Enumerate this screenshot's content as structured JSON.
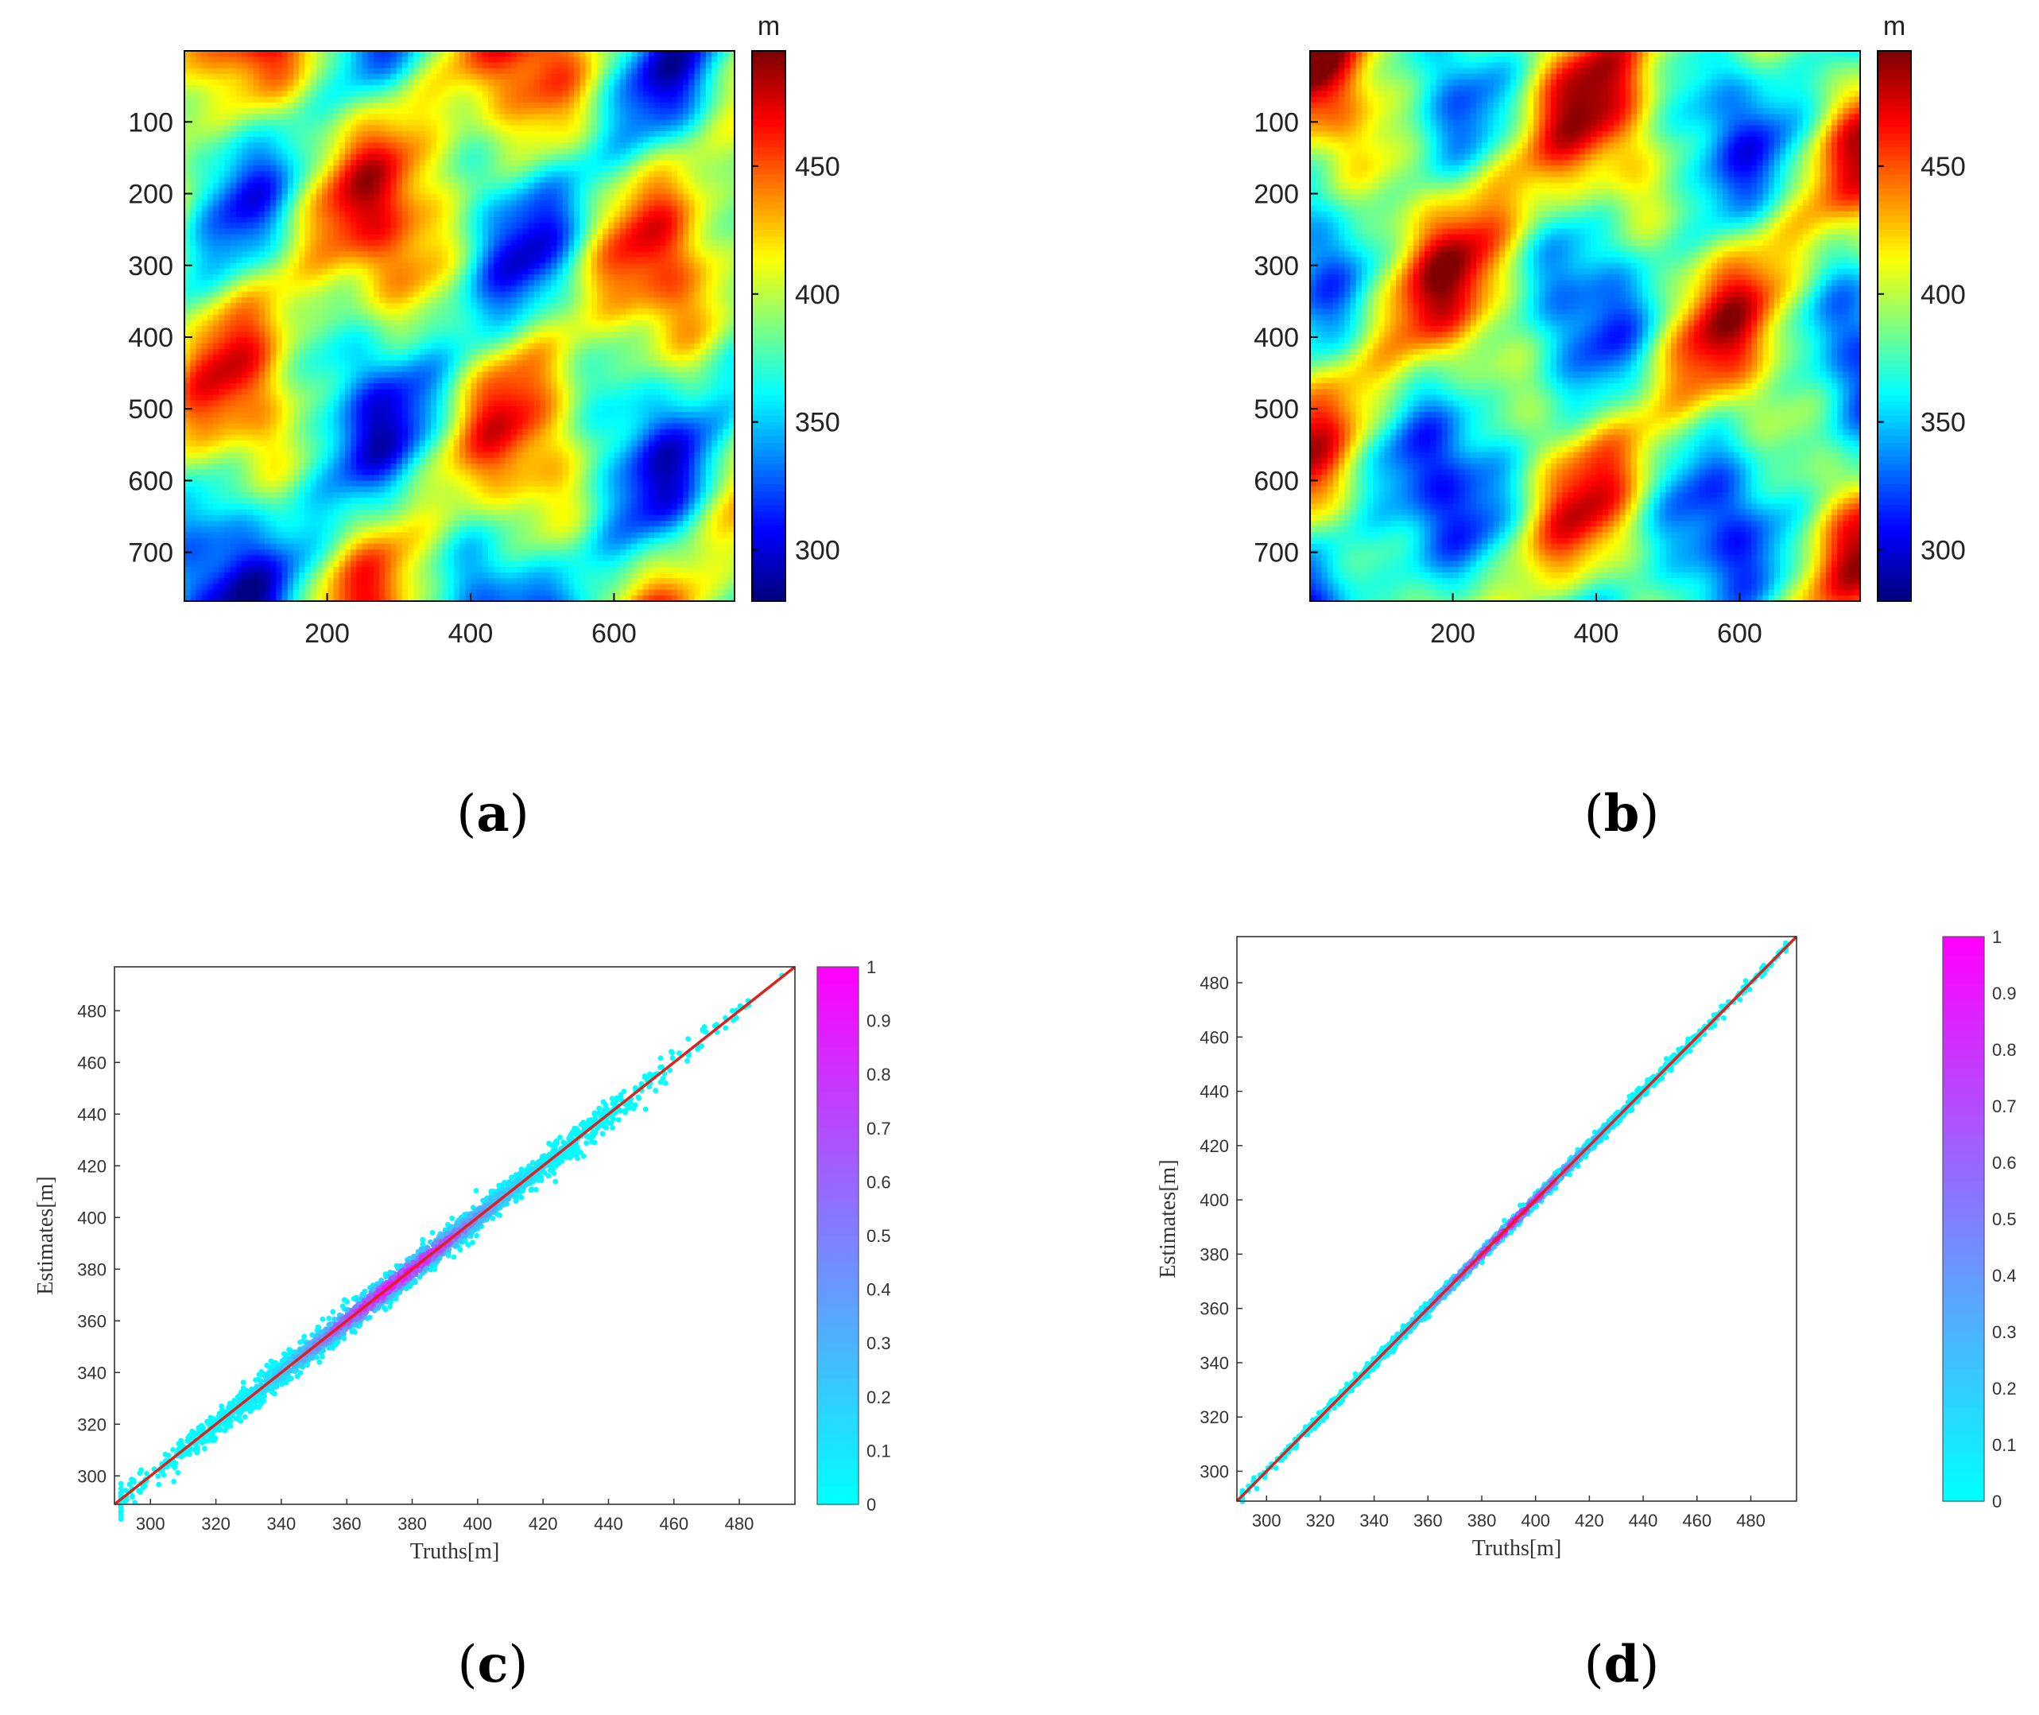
{
  "chart_data": [
    {
      "id": "a",
      "type": "heatmap",
      "caption_letter": "a",
      "x_ticks": [
        "200",
        "400",
        "600"
      ],
      "x_tick_values": [
        200,
        400,
        600
      ],
      "y_ticks": [
        "100",
        "200",
        "300",
        "400",
        "500",
        "600",
        "700"
      ],
      "y_tick_values": [
        100,
        200,
        300,
        400,
        500,
        600,
        700
      ],
      "xlim": [
        1,
        768
      ],
      "ylim": [
        1,
        768
      ],
      "colorbar_unit": "m",
      "colorbar_ticks": [
        "300",
        "350",
        "400",
        "450"
      ],
      "colorbar_tick_values": [
        300,
        350,
        400,
        450
      ],
      "colorbar_range": [
        280,
        495
      ],
      "colormap": "jet",
      "seed": 7,
      "high_colors": [
        "#7f0000",
        "#ff0000",
        "#ffff00",
        "#00ffff",
        "#0000ff",
        "#00007f"
      ]
    },
    {
      "id": "b",
      "type": "heatmap",
      "caption_letter": "b",
      "x_ticks": [
        "200",
        "400",
        "600"
      ],
      "x_tick_values": [
        200,
        400,
        600
      ],
      "y_ticks": [
        "100",
        "200",
        "300",
        "400",
        "500",
        "600",
        "700"
      ],
      "y_tick_values": [
        100,
        200,
        300,
        400,
        500,
        600,
        700
      ],
      "xlim": [
        1,
        768
      ],
      "ylim": [
        1,
        768
      ],
      "colorbar_unit": "m",
      "colorbar_ticks": [
        "300",
        "350",
        "400",
        "450"
      ],
      "colorbar_tick_values": [
        300,
        350,
        400,
        450
      ],
      "colorbar_range": [
        280,
        495
      ],
      "colormap": "jet",
      "seed": 11
    },
    {
      "id": "c",
      "type": "scatter",
      "caption_letter": "c",
      "xlabel": "Truths[m]",
      "ylabel": "Estimates[m]",
      "x_ticks": [
        "300",
        "320",
        "340",
        "360",
        "380",
        "400",
        "420",
        "440",
        "460",
        "480"
      ],
      "x_tick_values": [
        300,
        320,
        340,
        360,
        380,
        400,
        420,
        440,
        460,
        480
      ],
      "y_ticks": [
        "300",
        "320",
        "340",
        "360",
        "380",
        "400",
        "420",
        "440",
        "460",
        "480"
      ],
      "y_tick_values": [
        300,
        320,
        340,
        360,
        380,
        400,
        420,
        440,
        460,
        480
      ],
      "xlim": [
        289,
        497
      ],
      "ylim": [
        289,
        497
      ],
      "fit_line": [
        [
          289,
          289
        ],
        [
          497,
          497
        ]
      ],
      "fit_line_color": "#e0201c",
      "spread_sd": 2.6,
      "colorbar_ticks": [
        "0",
        "0.1",
        "0.2",
        "0.3",
        "0.4",
        "0.5",
        "0.6",
        "0.7",
        "0.8",
        "0.9",
        "1"
      ],
      "colorbar_tick_values": [
        0,
        0.1,
        0.2,
        0.3,
        0.4,
        0.5,
        0.6,
        0.7,
        0.8,
        0.9,
        1
      ],
      "colormap": "cool",
      "density_peak": 375
    },
    {
      "id": "d",
      "type": "scatter",
      "caption_letter": "d",
      "xlabel": "Truths[m]",
      "ylabel": "Estimates[m]",
      "x_ticks": [
        "300",
        "320",
        "340",
        "360",
        "380",
        "400",
        "420",
        "440",
        "460",
        "480"
      ],
      "x_tick_values": [
        300,
        320,
        340,
        360,
        380,
        400,
        420,
        440,
        460,
        480
      ],
      "y_ticks": [
        "300",
        "320",
        "340",
        "360",
        "380",
        "400",
        "420",
        "440",
        "460",
        "480"
      ],
      "y_tick_values": [
        300,
        320,
        340,
        360,
        380,
        400,
        420,
        440,
        460,
        480
      ],
      "xlim": [
        289,
        497
      ],
      "ylim": [
        289,
        497
      ],
      "fit_line": [
        [
          289,
          289
        ],
        [
          497,
          497
        ]
      ],
      "fit_line_color": "#e0201c",
      "spread_sd": 1.0,
      "colorbar_ticks": [
        "0",
        "0.1",
        "0.2",
        "0.3",
        "0.4",
        "0.5",
        "0.6",
        "0.7",
        "0.8",
        "0.9",
        "1"
      ],
      "colorbar_tick_values": [
        0,
        0.1,
        0.2,
        0.3,
        0.4,
        0.5,
        0.6,
        0.7,
        0.8,
        0.9,
        1
      ],
      "colormap": "cool",
      "density_peak": 390
    }
  ]
}
